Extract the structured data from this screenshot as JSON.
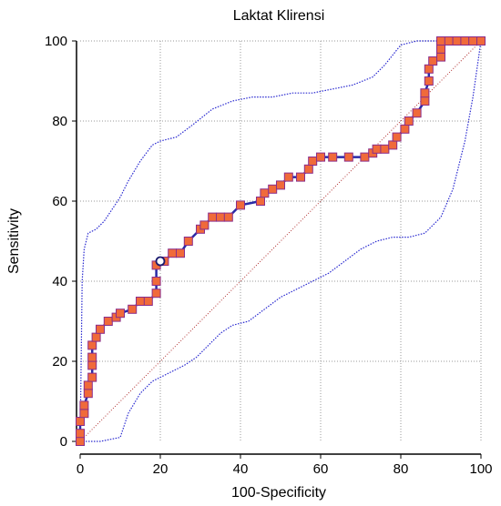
{
  "chart_data": {
    "type": "line",
    "title": "Laktat Klirensi",
    "xlabel": "100-Specificity",
    "ylabel": "Sensitivity",
    "xlim": [
      0,
      100
    ],
    "ylim": [
      0,
      100
    ],
    "xticks": [
      "0",
      "20",
      "40",
      "60",
      "80",
      "100"
    ],
    "yticks": [
      "0",
      "20",
      "40",
      "60",
      "80",
      "100"
    ],
    "grid": true,
    "colors": {
      "roc_line": "#2a2aa6",
      "marker_fill": "#f06a3a",
      "marker_edge": "#8a2d8a",
      "ci_line": "#2a2ad0",
      "diagonal": "#b03030",
      "grid": "#9a9a9a"
    },
    "roc_points": [
      [
        0,
        0
      ],
      [
        0,
        2
      ],
      [
        0,
        5
      ],
      [
        1,
        7
      ],
      [
        1,
        9
      ],
      [
        2,
        12
      ],
      [
        2,
        14
      ],
      [
        3,
        16
      ],
      [
        3,
        19
      ],
      [
        3,
        21
      ],
      [
        3,
        24
      ],
      [
        4,
        26
      ],
      [
        5,
        28
      ],
      [
        7,
        30
      ],
      [
        9,
        31
      ],
      [
        10,
        32
      ],
      [
        13,
        33
      ],
      [
        15,
        35
      ],
      [
        17,
        35
      ],
      [
        19,
        37
      ],
      [
        19,
        40
      ],
      [
        19,
        44
      ],
      [
        21,
        45
      ],
      [
        23,
        47
      ],
      [
        25,
        47
      ],
      [
        27,
        50
      ],
      [
        30,
        53
      ],
      [
        31,
        54
      ],
      [
        33,
        56
      ],
      [
        35,
        56
      ],
      [
        37,
        56
      ],
      [
        40,
        59
      ],
      [
        45,
        60
      ],
      [
        46,
        62
      ],
      [
        48,
        63
      ],
      [
        50,
        64
      ],
      [
        52,
        66
      ],
      [
        55,
        66
      ],
      [
        57,
        68
      ],
      [
        58,
        70
      ],
      [
        60,
        71
      ],
      [
        63,
        71
      ],
      [
        67,
        71
      ],
      [
        71,
        71
      ],
      [
        73,
        72
      ],
      [
        74,
        73
      ],
      [
        76,
        73
      ],
      [
        78,
        74
      ],
      [
        79,
        76
      ],
      [
        81,
        78
      ],
      [
        82,
        80
      ],
      [
        84,
        82
      ],
      [
        86,
        85
      ],
      [
        86,
        87
      ],
      [
        87,
        90
      ],
      [
        87,
        93
      ],
      [
        88,
        95
      ],
      [
        90,
        96
      ],
      [
        90,
        98
      ],
      [
        90,
        100
      ],
      [
        92,
        100
      ],
      [
        94,
        100
      ],
      [
        96,
        100
      ],
      [
        98,
        100
      ],
      [
        100,
        100
      ]
    ],
    "highlight_point": [
      20,
      45
    ],
    "ci_upper": [
      [
        0,
        0
      ],
      [
        0.5,
        40
      ],
      [
        1,
        48
      ],
      [
        2,
        52
      ],
      [
        4,
        53
      ],
      [
        6,
        55
      ],
      [
        8,
        58
      ],
      [
        10,
        61
      ],
      [
        12,
        65
      ],
      [
        15,
        70
      ],
      [
        18,
        74
      ],
      [
        20,
        75
      ],
      [
        24,
        76
      ],
      [
        28,
        79
      ],
      [
        33,
        83
      ],
      [
        38,
        85
      ],
      [
        43,
        86
      ],
      [
        48,
        86
      ],
      [
        53,
        87
      ],
      [
        58,
        87
      ],
      [
        63,
        88
      ],
      [
        68,
        89
      ],
      [
        73,
        91
      ],
      [
        76,
        94
      ],
      [
        80,
        99
      ],
      [
        84,
        100
      ],
      [
        90,
        100
      ],
      [
        95,
        100
      ],
      [
        100,
        100
      ]
    ],
    "ci_lower": [
      [
        0,
        0
      ],
      [
        5,
        0
      ],
      [
        10,
        1
      ],
      [
        12,
        7
      ],
      [
        15,
        12
      ],
      [
        18,
        15
      ],
      [
        22,
        17
      ],
      [
        26,
        19
      ],
      [
        29,
        21
      ],
      [
        32,
        24
      ],
      [
        35,
        27
      ],
      [
        38,
        29
      ],
      [
        42,
        30
      ],
      [
        46,
        33
      ],
      [
        50,
        36
      ],
      [
        54,
        38
      ],
      [
        58,
        40
      ],
      [
        62,
        42
      ],
      [
        66,
        45
      ],
      [
        70,
        48
      ],
      [
        74,
        50
      ],
      [
        78,
        51
      ],
      [
        82,
        51
      ],
      [
        86,
        52
      ],
      [
        90,
        56
      ],
      [
        93,
        63
      ],
      [
        96,
        75
      ],
      [
        98,
        86
      ],
      [
        99,
        93
      ],
      [
        100,
        100
      ]
    ]
  }
}
